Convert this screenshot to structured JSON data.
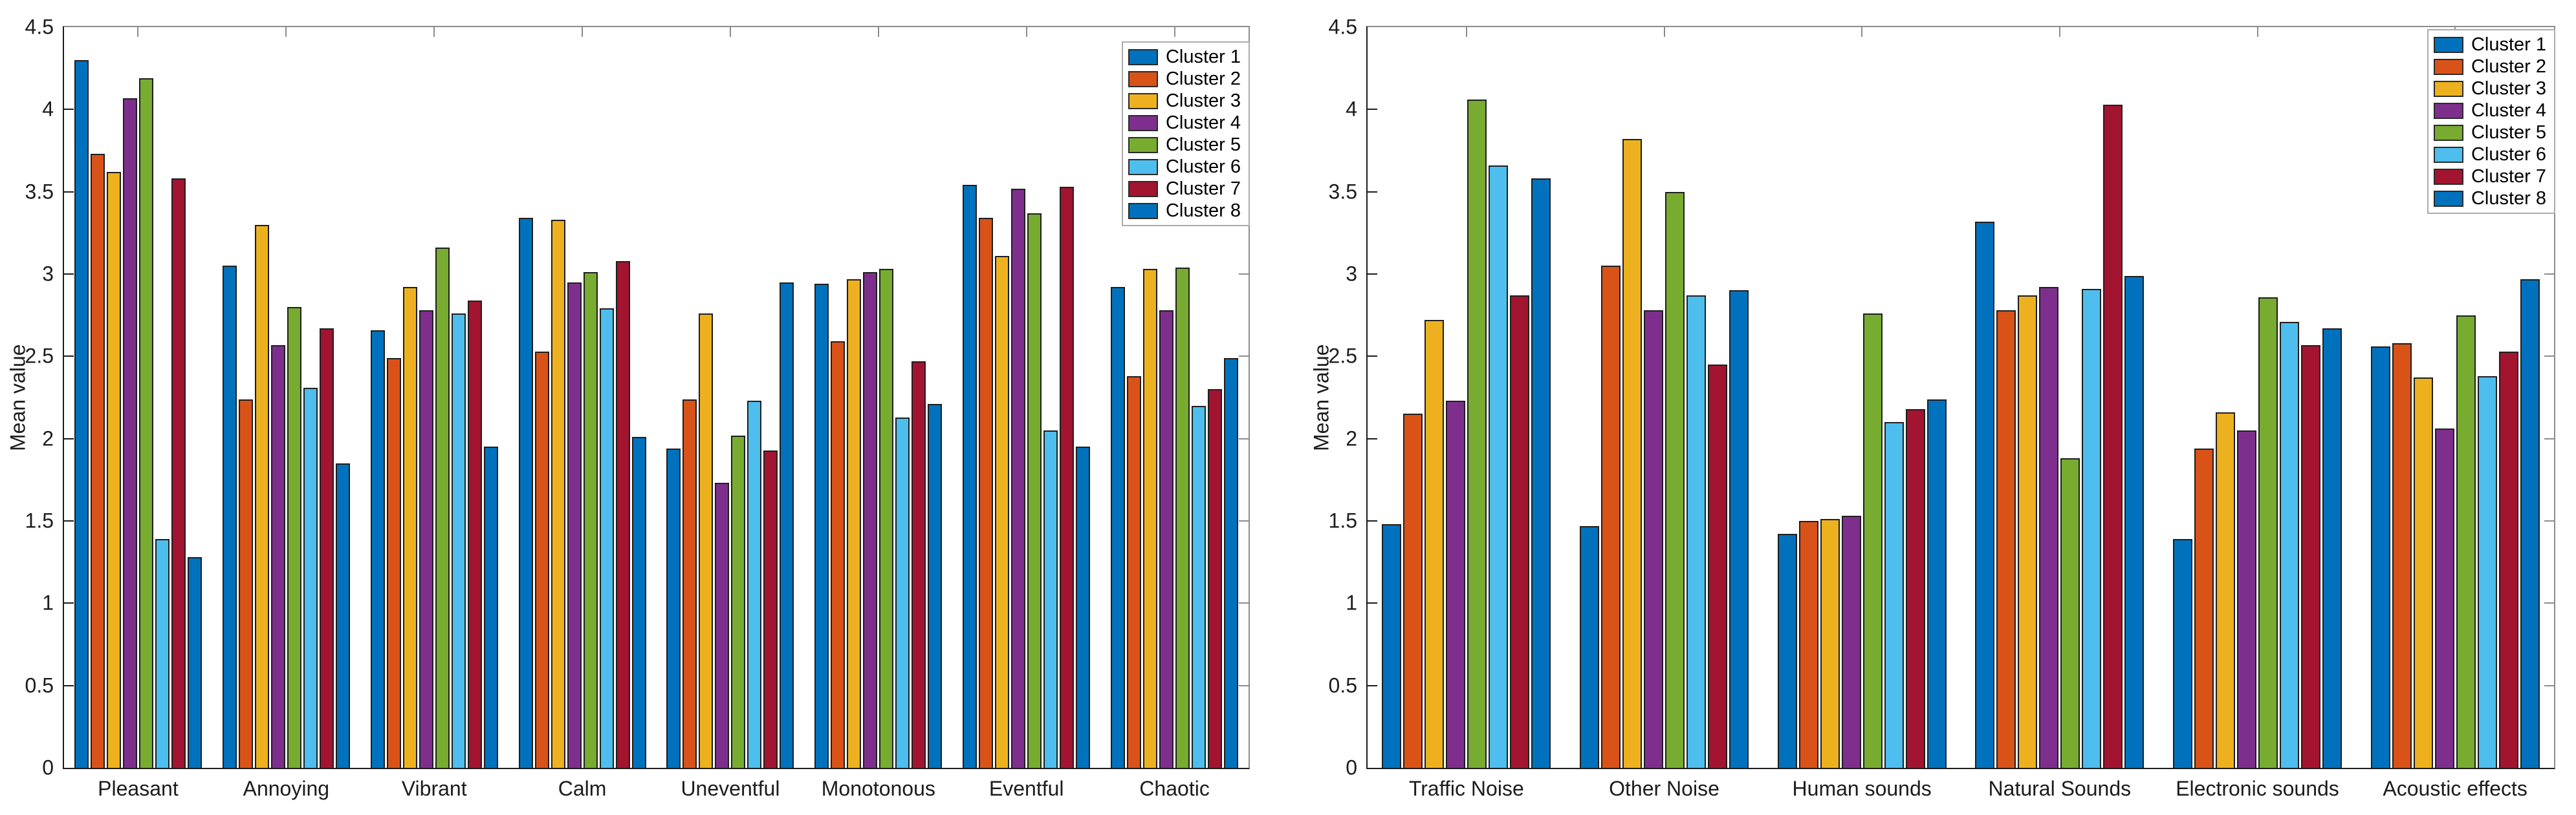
{
  "figure": {
    "background": "#ffffff",
    "ylabel": "Mean value",
    "legend_labels": [
      "Cluster 1",
      "Cluster 2",
      "Cluster 3",
      "Cluster 4",
      "Cluster 5",
      "Cluster 6",
      "Cluster 7",
      "Cluster 8"
    ],
    "palette": [
      "#0072BD",
      "#D95319",
      "#EDB120",
      "#7E2F8E",
      "#77AC30",
      "#4DBEEE",
      "#A2142F",
      "#0072BD"
    ]
  },
  "chart_data": [
    {
      "type": "bar",
      "title": "",
      "xlabel": "",
      "ylabel": "Mean value",
      "ylim": [
        0,
        4.5
      ],
      "y_ticks": [
        "0",
        "0.5",
        "1",
        "1.5",
        "2",
        "2.5",
        "3",
        "3.5",
        "4",
        "4.5"
      ],
      "grid": false,
      "legend_position": "top-right-inside",
      "categories": [
        "Pleasant",
        "Annoying",
        "Vibrant",
        "Calm",
        "Uneventful",
        "Monotonous",
        "Eventful",
        "Chaotic"
      ],
      "series": [
        {
          "name": "Cluster 1",
          "color": "#0072BD",
          "values": [
            4.3,
            3.05,
            2.66,
            3.34,
            1.94,
            2.94,
            3.54,
            2.92
          ]
        },
        {
          "name": "Cluster 2",
          "color": "#D95319",
          "values": [
            3.73,
            2.24,
            2.49,
            2.53,
            2.24,
            2.59,
            3.34,
            2.38
          ]
        },
        {
          "name": "Cluster 3",
          "color": "#EDB120",
          "values": [
            3.62,
            3.3,
            2.92,
            3.33,
            2.76,
            2.97,
            3.11,
            3.03
          ]
        },
        {
          "name": "Cluster 4",
          "color": "#7E2F8E",
          "values": [
            4.07,
            2.57,
            2.78,
            2.95,
            1.73,
            3.01,
            3.52,
            2.78
          ]
        },
        {
          "name": "Cluster 5",
          "color": "#77AC30",
          "values": [
            4.19,
            2.8,
            3.16,
            3.01,
            2.02,
            3.03,
            3.37,
            3.04
          ]
        },
        {
          "name": "Cluster 6",
          "color": "#4DBEEE",
          "values": [
            1.39,
            2.31,
            2.76,
            2.79,
            2.23,
            2.13,
            2.05,
            2.2
          ]
        },
        {
          "name": "Cluster 7",
          "color": "#A2142F",
          "values": [
            3.58,
            2.67,
            2.84,
            3.08,
            1.93,
            2.47,
            3.53,
            2.3
          ]
        },
        {
          "name": "Cluster 8",
          "color": "#0072BD",
          "values": [
            1.28,
            1.85,
            1.95,
            2.01,
            2.95,
            2.21,
            1.95,
            2.49
          ]
        }
      ]
    },
    {
      "type": "bar",
      "title": "",
      "xlabel": "",
      "ylabel": "Mean value",
      "ylim": [
        0,
        4.5
      ],
      "y_ticks": [
        "0",
        "0.5",
        "1",
        "1.5",
        "2",
        "2.5",
        "3",
        "3.5",
        "4",
        "4.5"
      ],
      "grid": false,
      "legend_position": "top-right-inside",
      "categories": [
        "Traffic Noise",
        "Other Noise",
        "Human sounds",
        "Natural Sounds",
        "Electronic sounds",
        "Acoustic effects"
      ],
      "series": [
        {
          "name": "Cluster 1",
          "color": "#0072BD",
          "values": [
            1.48,
            1.47,
            1.42,
            3.32,
            1.39,
            2.56
          ]
        },
        {
          "name": "Cluster 2",
          "color": "#D95319",
          "values": [
            2.15,
            3.05,
            1.5,
            2.78,
            1.94,
            2.58
          ]
        },
        {
          "name": "Cluster 3",
          "color": "#EDB120",
          "values": [
            2.72,
            3.82,
            1.51,
            2.87,
            2.16,
            2.37
          ]
        },
        {
          "name": "Cluster 4",
          "color": "#7E2F8E",
          "values": [
            2.23,
            2.78,
            1.53,
            2.92,
            2.05,
            2.06
          ]
        },
        {
          "name": "Cluster 5",
          "color": "#77AC30",
          "values": [
            4.06,
            3.5,
            2.76,
            1.88,
            2.86,
            2.75
          ]
        },
        {
          "name": "Cluster 6",
          "color": "#4DBEEE",
          "values": [
            3.66,
            2.87,
            2.1,
            2.91,
            2.71,
            2.38
          ]
        },
        {
          "name": "Cluster 7",
          "color": "#A2142F",
          "values": [
            2.87,
            2.45,
            2.18,
            4.03,
            2.57,
            2.53
          ]
        },
        {
          "name": "Cluster 8",
          "color": "#0072BD",
          "values": [
            3.58,
            2.9,
            2.24,
            2.99,
            2.67,
            2.97
          ]
        }
      ]
    }
  ]
}
